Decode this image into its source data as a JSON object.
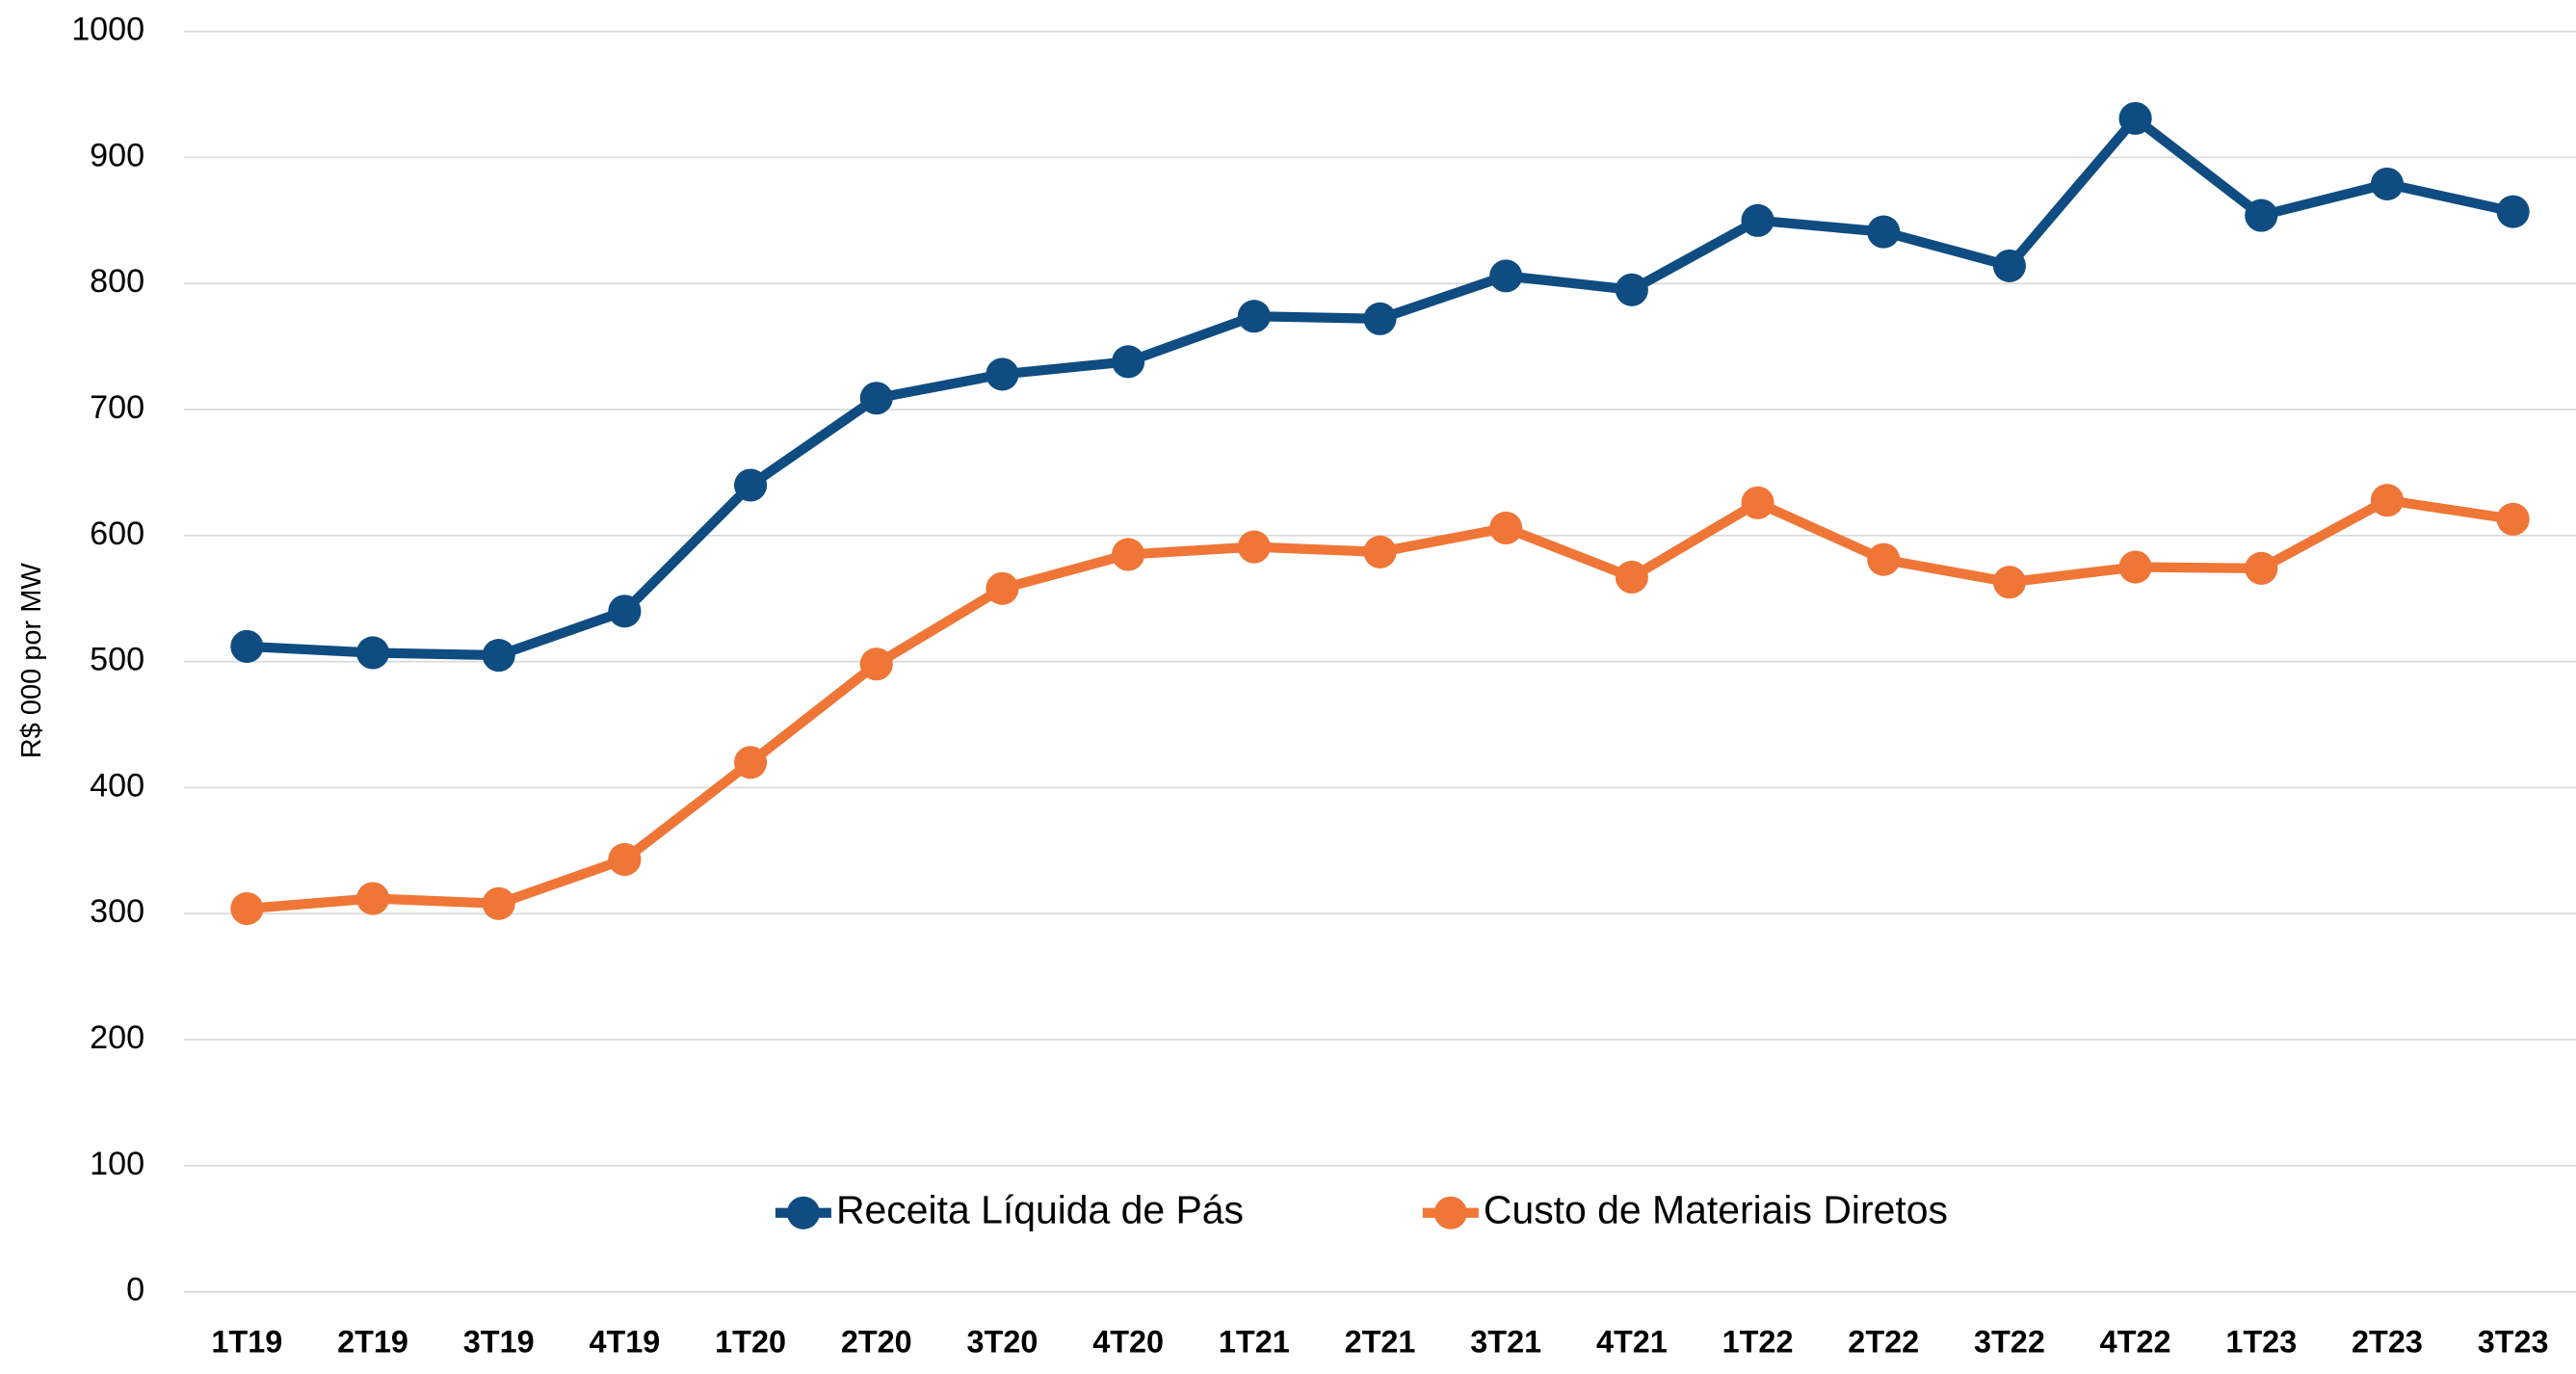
{
  "chart_data": {
    "type": "line",
    "y_label": "R$ 000 por MW",
    "categories": [
      "1T19",
      "2T19",
      "3T19",
      "4T19",
      "1T20",
      "2T20",
      "3T20",
      "4T20",
      "1T21",
      "2T21",
      "3T21",
      "4T21",
      "1T22",
      "2T22",
      "3T22",
      "4T22",
      "1T23",
      "2T23",
      "3T23"
    ],
    "series": [
      {
        "name": "Receita Líquida de Pás",
        "color": "#0f4c81",
        "values": [
          512,
          507,
          505,
          540,
          640,
          709,
          728,
          738,
          774,
          772,
          806,
          795,
          850,
          841,
          814,
          931,
          854,
          879,
          857
        ]
      },
      {
        "name": "Custo de Materiais Diretos",
        "color": "#ef7636",
        "values": [
          304,
          312,
          308,
          343,
          420,
          498,
          558,
          585,
          591,
          587,
          606,
          567,
          626,
          581,
          563,
          575,
          574,
          628,
          613
        ]
      }
    ],
    "ylim": [
      0,
      1000
    ],
    "yticks": [
      0,
      100,
      200,
      300,
      400,
      500,
      600,
      700,
      800,
      900,
      1000
    ],
    "grid": true,
    "legend": "bottom"
  }
}
